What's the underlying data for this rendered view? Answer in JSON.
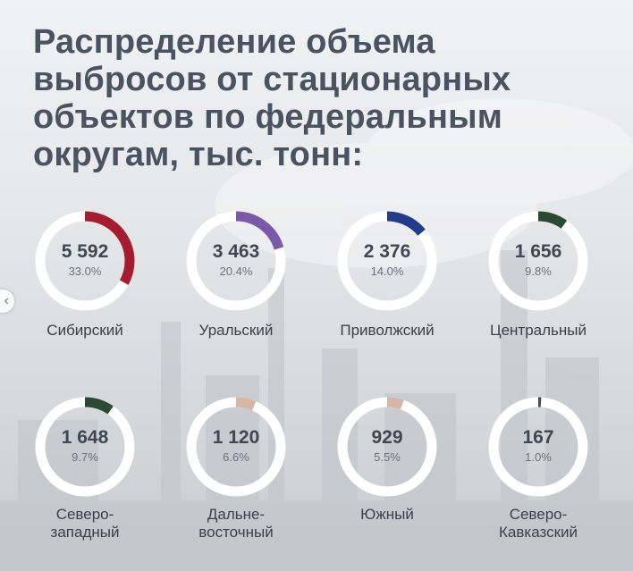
{
  "chart_data": {
    "type": "donut",
    "title": "Распределение объема выбросов от стационарных объектов по федеральным округам, тыс. тонн:",
    "series": [
      {
        "name": "Сибирский",
        "value_label": "5 592",
        "value": 5592,
        "percent_label": "33.0%",
        "percent": 33.0,
        "color": "#a51c30"
      },
      {
        "name": "Уральский",
        "value_label": "3 463",
        "value": 3463,
        "percent_label": "20.4%",
        "percent": 20.4,
        "color": "#7a5aa6"
      },
      {
        "name": "Приволжский",
        "value_label": "2 376",
        "value": 2376,
        "percent_label": "14.0%",
        "percent": 14.0,
        "color": "#233b8c"
      },
      {
        "name": "Центральный",
        "value_label": "1 656",
        "value": 1656,
        "percent_label": "9.8%",
        "percent": 9.8,
        "color": "#2b4a34"
      },
      {
        "name": "Северо-\nзападный",
        "value_label": "1 648",
        "value": 1648,
        "percent_label": "9.7%",
        "percent": 9.7,
        "color": "#2b4a34"
      },
      {
        "name": "Дальне-\nвосточный",
        "value_label": "1 120",
        "value": 1120,
        "percent_label": "6.6%",
        "percent": 6.6,
        "color": "#d6b7a5"
      },
      {
        "name": "Южный",
        "value_label": "929",
        "value": 929,
        "percent_label": "5.5%",
        "percent": 5.5,
        "color": "#d6b7a5"
      },
      {
        "name": "Северо-\nКавказский",
        "value_label": "167",
        "value": 167,
        "percent_label": "1.0%",
        "percent": 1.0,
        "color": "#4a4a4a"
      }
    ],
    "ring_track_color": "#ffffff"
  },
  "nav": {
    "prev_icon": "chevron-left-icon",
    "prev_glyph": "‹"
  }
}
